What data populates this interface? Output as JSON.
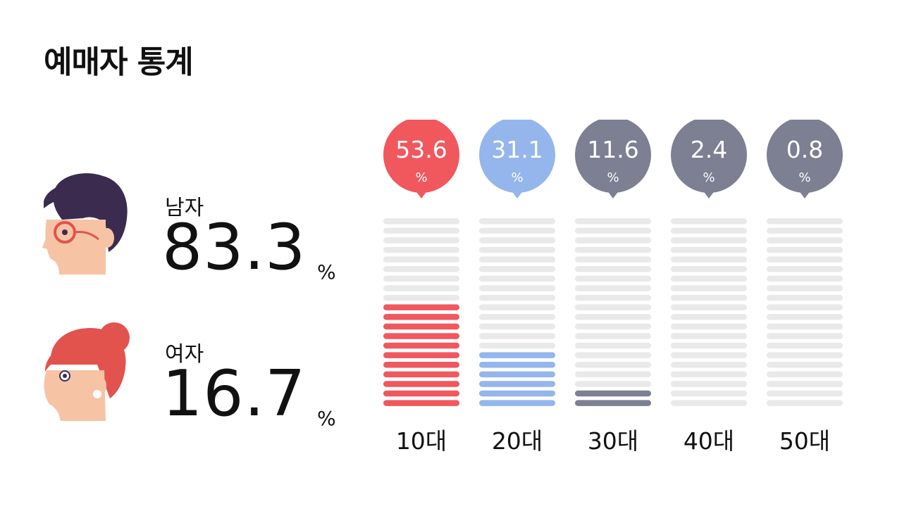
{
  "title": "예매자 통계",
  "gender": {
    "male": {
      "label": "남자",
      "value": "83.3",
      "unit": "%",
      "icon": "male-face-icon"
    },
    "female": {
      "label": "여자",
      "value": "16.7",
      "unit": "%",
      "icon": "female-face-icon"
    }
  },
  "chart_data": {
    "type": "bar",
    "title": "",
    "xlabel": "",
    "ylabel": "",
    "ylim": [
      0,
      100
    ],
    "grid": false,
    "categories": [
      "10대",
      "20대",
      "30대",
      "40대",
      "50대"
    ],
    "values": [
      53.6,
      31.1,
      11.6,
      2.4,
      0.8
    ],
    "value_labels": [
      "53.6",
      "31.1",
      "11.6",
      "2.4",
      "0.8"
    ],
    "unit": "%",
    "filled_stripes": [
      11,
      6,
      2,
      0,
      0
    ],
    "total_stripes": 20,
    "colors": [
      "#f0585e",
      "#94b6ec",
      "#7d7f92",
      "#7d7f92",
      "#7d7f92"
    ],
    "empty_color": "#e9e9e9"
  }
}
